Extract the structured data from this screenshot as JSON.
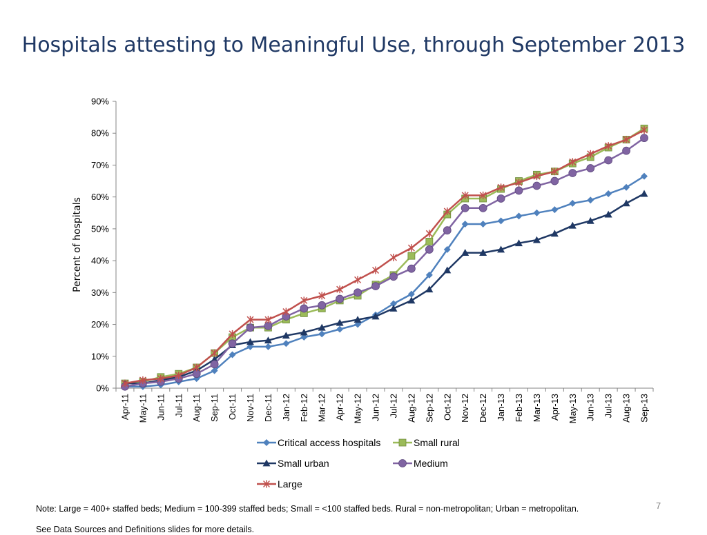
{
  "slide": {
    "title": "Hospitals attesting to Meaningful Use, through September 2013",
    "note": "Note: Large = 400+ staffed beds; Medium = 100-399 staffed beds; Small = <100 staffed beds. Rural = non-metropolitan; Urban = metropolitan.",
    "footnote": "See Data Sources and Definitions slides for more details.",
    "page_number": "7"
  },
  "chart_data": {
    "type": "line",
    "title": "",
    "xlabel": "",
    "ylabel": "Percent of hospitals",
    "ylim": [
      0,
      90
    ],
    "y_ticks": [
      "0%",
      "10%",
      "20%",
      "30%",
      "40%",
      "50%",
      "60%",
      "70%",
      "80%",
      "90%"
    ],
    "y_tick_values": [
      0,
      10,
      20,
      30,
      40,
      50,
      60,
      70,
      80,
      90
    ],
    "grid": false,
    "legend_position": "bottom",
    "categories": [
      "Apr-11",
      "May-11",
      "Jun-11",
      "Jul-11",
      "Aug-11",
      "Sep-11",
      "Oct-11",
      "Nov-11",
      "Dec-11",
      "Jan-12",
      "Feb-12",
      "Mar-12",
      "Apr-12",
      "May-12",
      "Jun-12",
      "Jul-12",
      "Aug-12",
      "Sep-12",
      "Oct-12",
      "Nov-12",
      "Dec-12",
      "Jan-13",
      "Feb-13",
      "Mar-13",
      "Apr-13",
      "May-13",
      "Jun-13",
      "Jul-13",
      "Aug-13",
      "Sep-13"
    ],
    "series": [
      {
        "name": "Critical access hospitals",
        "color": "#4f81bd",
        "marker": "diamond",
        "values": [
          0.5,
          0.5,
          1,
          2,
          3,
          5.5,
          10.5,
          13,
          13,
          14,
          16,
          17,
          18.5,
          20,
          23,
          26.5,
          29.5,
          35.5,
          43.5,
          51.5,
          51.5,
          52.5,
          54,
          55,
          56,
          58,
          59,
          61,
          63,
          66.5
        ]
      },
      {
        "name": "Small rural",
        "color": "#9bbb59",
        "marker": "square",
        "values": [
          1.5,
          2,
          3.5,
          4.5,
          6.5,
          11,
          16,
          19,
          19,
          21.5,
          23.5,
          25,
          27.5,
          29,
          32.5,
          35.5,
          41.5,
          46,
          54.5,
          59.5,
          59.5,
          62.5,
          65,
          67,
          68,
          70.5,
          72.5,
          75.5,
          78,
          81.5
        ]
      },
      {
        "name": "Small urban",
        "color": "#1f3864",
        "marker": "triangle",
        "values": [
          1.5,
          1.5,
          2.5,
          3.5,
          5.5,
          9,
          13.5,
          14.5,
          15,
          16.5,
          17.5,
          19,
          20.5,
          21.5,
          22.5,
          25,
          27.5,
          31,
          37,
          42.5,
          42.5,
          43.5,
          45.5,
          46.5,
          48.5,
          51,
          52.5,
          54.5,
          58,
          61
        ]
      },
      {
        "name": "Medium",
        "color": "#8064a2",
        "marker": "circle",
        "values": [
          0.5,
          1.5,
          2,
          3,
          4.5,
          7.5,
          14,
          19,
          19.5,
          22.5,
          25,
          26,
          28,
          30,
          32,
          35,
          37.5,
          43.5,
          49.5,
          56.5,
          56.5,
          59.5,
          62,
          63.5,
          65,
          67.5,
          69,
          71.5,
          74.5,
          78.5
        ]
      },
      {
        "name": "Large",
        "color": "#c0504d",
        "marker": "x",
        "values": [
          1.5,
          2.5,
          3,
          4,
          6.5,
          11,
          17,
          21.5,
          21.5,
          24,
          27.5,
          29,
          31,
          34,
          37,
          41,
          44,
          48.5,
          55.5,
          60.5,
          60.5,
          63,
          64.5,
          66.5,
          68,
          71,
          73.5,
          76,
          78,
          81
        ]
      }
    ]
  }
}
